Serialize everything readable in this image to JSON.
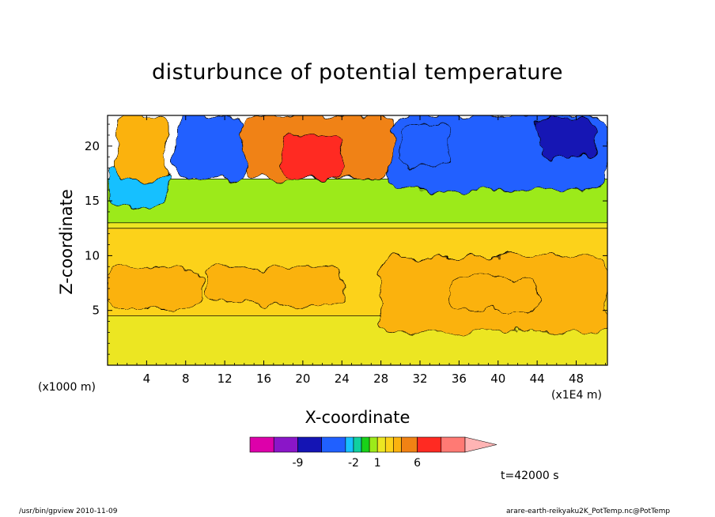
{
  "chart_data": {
    "type": "heatmap",
    "title": "disturbunce of potential temperature",
    "xlabel": "X-coordinate",
    "ylabel": "Z-coordinate",
    "x_unit_label": "(x1000 m)",
    "x_scale_label": "(x1E4 m)",
    "xlim": [
      0,
      51.2
    ],
    "ylim": [
      0,
      22.8
    ],
    "x_ticks": [
      "4",
      "8",
      "12",
      "16",
      "20",
      "24",
      "28",
      "32",
      "36",
      "40",
      "44",
      "48"
    ],
    "x_tick_values": [
      4,
      8,
      12,
      16,
      20,
      24,
      28,
      32,
      36,
      40,
      44,
      48
    ],
    "y_ticks": [
      "5",
      "10",
      "15",
      "20"
    ],
    "y_tick_values": [
      5,
      10,
      15,
      20
    ],
    "colorbar": {
      "levels": [
        -15,
        -12,
        -9,
        -6,
        -3,
        -2,
        -1,
        0,
        1,
        2,
        3,
        4,
        6,
        9,
        12
      ],
      "labels": [
        "-9",
        "-2",
        "1",
        "6"
      ],
      "label_values": [
        -9,
        -2,
        1,
        6
      ],
      "colors": [
        "#dd00aa",
        "#8a16c8",
        "#1414b4",
        "#2060ff",
        "#18c0ff",
        "#10d0a0",
        "#19d219",
        "#9cea1a",
        "#ece622",
        "#fcd21a",
        "#fbb20f",
        "#f08214",
        "#ff2a22",
        "#ff7a74",
        "#ffb4b4"
      ]
    },
    "region_values": [
      {
        "x": [
          0,
          51.2
        ],
        "z": [
          0,
          4.5
        ],
        "v": 1.5
      },
      {
        "x": [
          0,
          51.2
        ],
        "z": [
          4.5,
          12.5
        ],
        "v": 2.5
      },
      {
        "x": [
          0,
          51.2
        ],
        "z": [
          12.5,
          16.8
        ],
        "v": 1.5
      },
      {
        "x": [
          0,
          9.6
        ],
        "z": [
          5,
          9
        ],
        "v": 3.5
      },
      {
        "x": [
          10,
          24
        ],
        "z": [
          5.5,
          9
        ],
        "v": 3.5
      },
      {
        "x": [
          28,
          51.2
        ],
        "z": [
          3,
          10
        ],
        "v": 3
      },
      {
        "x": [
          35,
          44
        ],
        "z": [
          5,
          8
        ],
        "v": 3.6
      },
      {
        "x": [
          0,
          51.2
        ],
        "z": [
          13,
          17
        ],
        "v": 0.5
      },
      {
        "x": [
          0,
          6
        ],
        "z": [
          14.5,
          18
        ],
        "v": -3
      },
      {
        "x": [
          1,
          6
        ],
        "z": [
          17,
          22.8
        ],
        "v": 3.5
      },
      {
        "x": [
          7,
          14
        ],
        "z": [
          17,
          22.8
        ],
        "v": -5
      },
      {
        "x": [
          14,
          29
        ],
        "z": [
          17,
          22.8
        ],
        "v": 4
      },
      {
        "x": [
          18,
          24
        ],
        "z": [
          17,
          21
        ],
        "v": 6
      },
      {
        "x": [
          29,
          51.2
        ],
        "z": [
          16,
          22.8
        ],
        "v": -4
      },
      {
        "x": [
          30,
          35
        ],
        "z": [
          18,
          22
        ],
        "v": -6
      },
      {
        "x": [
          44,
          50
        ],
        "z": [
          19,
          22.5
        ],
        "v": -9
      }
    ],
    "grid": false
  },
  "annotations": {
    "time": "t=42000 s",
    "footer_left": "/usr/bin/gpview   2010-11-09",
    "footer_right": "arare-earth-reikyaku2K_PotTemp.nc@PotTemp"
  }
}
